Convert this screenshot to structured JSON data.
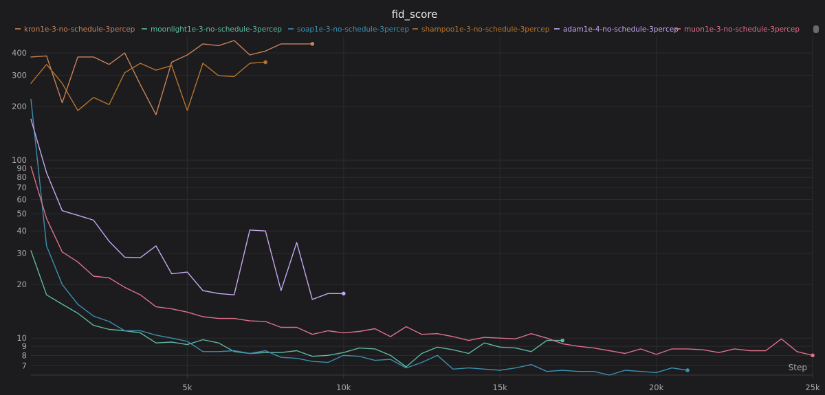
{
  "chart_data": {
    "type": "line",
    "title": "fid_score",
    "xlabel": "Step",
    "ylabel": "",
    "xlim": [
      0,
      25000
    ],
    "ylim": [
      6.2,
      500
    ],
    "y_scale": "log",
    "grid": true,
    "legend_position": "top",
    "x_ticks": [
      {
        "value": 5000,
        "label": "5k"
      },
      {
        "value": 10000,
        "label": "10k"
      },
      {
        "value": 15000,
        "label": "15k"
      },
      {
        "value": 20000,
        "label": "20k"
      },
      {
        "value": 25000,
        "label": "25k"
      }
    ],
    "y_ticks": [
      {
        "value": 7,
        "label": "7"
      },
      {
        "value": 8,
        "label": "8"
      },
      {
        "value": 9,
        "label": "9"
      },
      {
        "value": 10,
        "label": "10"
      },
      {
        "value": 20,
        "label": "20"
      },
      {
        "value": 30,
        "label": "30"
      },
      {
        "value": 40,
        "label": "40"
      },
      {
        "value": 50,
        "label": "50"
      },
      {
        "value": 60,
        "label": "60"
      },
      {
        "value": 70,
        "label": "70"
      },
      {
        "value": 80,
        "label": "80"
      },
      {
        "value": 90,
        "label": "90"
      },
      {
        "value": 100,
        "label": "100"
      },
      {
        "value": 200,
        "label": "200"
      },
      {
        "value": 300,
        "label": "300"
      },
      {
        "value": 400,
        "label": "400"
      }
    ],
    "series": [
      {
        "name": "kron1e-3-no-schedule-3percep",
        "color": "#c8825a",
        "x": [
          0,
          500,
          1000,
          1500,
          2000,
          2500,
          3000,
          3500,
          4000,
          4500,
          5000,
          5500,
          6000,
          6500,
          7000,
          7500,
          8000,
          8500,
          9000
        ],
        "y": [
          380,
          385,
          210,
          380,
          380,
          345,
          400,
          265,
          180,
          355,
          390,
          450,
          440,
          470,
          390,
          410,
          450,
          450,
          450
        ]
      },
      {
        "name": "moonlight1e-3-no-schedule-3percep",
        "color": "#5fb8a0",
        "x": [
          0,
          500,
          1000,
          1500,
          2000,
          2500,
          3000,
          3500,
          4000,
          4500,
          5000,
          5500,
          6000,
          6500,
          7000,
          7500,
          8000,
          8500,
          9000,
          9500,
          10000,
          10500,
          11000,
          11500,
          12000,
          12500,
          13000,
          13500,
          14000,
          14500,
          15000,
          15500,
          16000,
          16500,
          17000
        ],
        "y": [
          31,
          17.5,
          15.5,
          13.8,
          11.8,
          11.2,
          11.0,
          10.7,
          9.4,
          9.5,
          9.2,
          9.8,
          9.4,
          8.4,
          8.2,
          8.3,
          8.3,
          8.5,
          7.9,
          8.0,
          8.3,
          8.8,
          8.7,
          8.0,
          6.9,
          8.2,
          8.9,
          8.6,
          8.2,
          9.4,
          8.9,
          8.8,
          8.4,
          9.7,
          9.7
        ]
      },
      {
        "name": "soap1e-3-no-schedule-3percep",
        "color": "#3d8fb0",
        "x": [
          0,
          500,
          1000,
          1500,
          2000,
          2500,
          3000,
          3500,
          4000,
          4500,
          5000,
          5500,
          6000,
          6500,
          7000,
          7500,
          8000,
          8500,
          9000,
          9500,
          10000,
          10500,
          11000,
          11500,
          12000,
          12500,
          13000,
          13500,
          14000,
          14500,
          15000,
          15500,
          16000,
          16500,
          17000,
          17500,
          18000,
          18500,
          19000,
          19500,
          20000,
          20500,
          21000
        ],
        "y": [
          220,
          33,
          20,
          15.5,
          13.3,
          12.4,
          11.0,
          11.0,
          10.4,
          10.0,
          9.6,
          8.4,
          8.4,
          8.5,
          8.2,
          8.5,
          7.8,
          7.7,
          7.4,
          7.3,
          8.0,
          7.9,
          7.5,
          7.6,
          6.8,
          7.3,
          8.0,
          6.7,
          6.8,
          6.7,
          6.6,
          6.8,
          7.1,
          6.5,
          6.6,
          6.5,
          6.5,
          6.2,
          6.6,
          6.5,
          6.4,
          6.8,
          6.6
        ]
      },
      {
        "name": "shampoo1e-3-no-schedule-3percep",
        "color": "#b5742e",
        "x": [
          0,
          500,
          1000,
          1500,
          2000,
          2500,
          3000,
          3500,
          4000,
          4500,
          5000,
          5500,
          6000,
          6500,
          7000,
          7500
        ],
        "y": [
          270,
          345,
          270,
          190,
          225,
          205,
          310,
          350,
          320,
          340,
          190,
          350,
          298,
          295,
          350,
          355
        ]
      },
      {
        "name": "adam1e-4-no-schedule-3percep",
        "color": "#c4a8f0",
        "x": [
          0,
          500,
          1000,
          1500,
          2000,
          2500,
          3000,
          3500,
          4000,
          4500,
          5000,
          5500,
          6000,
          6500,
          7000,
          7500,
          8000,
          8500,
          9000,
          9500,
          10000
        ],
        "y": [
          170,
          85,
          52,
          49,
          46,
          35,
          28.5,
          28.3,
          33,
          23,
          23.5,
          18.5,
          17.8,
          17.5,
          40.5,
          40,
          18.5,
          34.5,
          16.5,
          17.8,
          17.8
        ]
      },
      {
        "name": "muon1e-3-no-schedule-3percep",
        "color": "#e0708a",
        "x": [
          0,
          500,
          1000,
          1500,
          2000,
          2500,
          3000,
          3500,
          4000,
          4500,
          5000,
          5500,
          6000,
          6500,
          7000,
          7500,
          8000,
          8500,
          9000,
          9500,
          10000,
          10500,
          11000,
          11500,
          12000,
          12500,
          13000,
          13500,
          14000,
          14500,
          15000,
          15500,
          16000,
          16500,
          17000,
          17500,
          18000,
          18500,
          19000,
          19500,
          20000,
          20500,
          21000,
          21500,
          22000,
          22500,
          23000,
          23500,
          24000,
          24500,
          25000
        ],
        "y": [
          92,
          47,
          30.5,
          26.8,
          22.3,
          21.8,
          19.3,
          17.5,
          15,
          14.6,
          14,
          13.2,
          12.9,
          12.9,
          12.5,
          12.4,
          11.5,
          11.5,
          10.5,
          11.0,
          10.7,
          10.9,
          11.3,
          10.2,
          11.6,
          10.5,
          10.6,
          10.2,
          9.7,
          10.1,
          10.0,
          9.9,
          10.6,
          10.0,
          9.3,
          9.0,
          8.8,
          8.5,
          8.2,
          8.7,
          8.1,
          8.7,
          8.7,
          8.6,
          8.3,
          8.7,
          8.5,
          8.5,
          9.9,
          8.4,
          8.0
        ]
      }
    ]
  }
}
